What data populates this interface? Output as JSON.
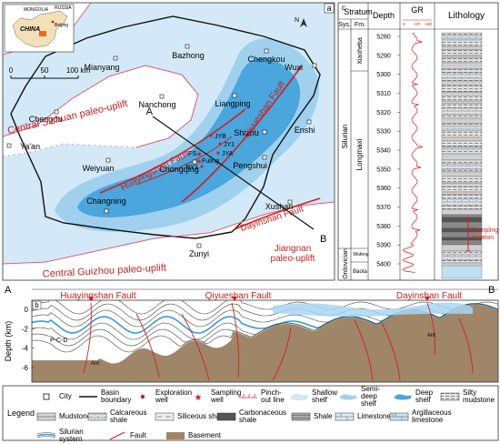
{
  "map": {
    "panel": "a",
    "north": "N",
    "inset": {
      "neighbors": [
        "MONGOLIA",
        "RUSSIA"
      ],
      "country": "CHINA",
      "capital": "Beijing"
    },
    "scale": [
      "0",
      "50",
      "100 km"
    ],
    "cities": [
      "Bazhong",
      "Mianyang",
      "Chengkou",
      "Wuxi",
      "Nanchong",
      "Liangping",
      "Chengdu",
      "Enshi",
      "Ya'an",
      "Shizhu",
      "Weiyuan",
      "Chongqing",
      "Pengshui",
      "Changning",
      "Zunyi",
      "Xushan"
    ],
    "wells": [
      "JYB",
      "JY1",
      "JYA",
      "FS",
      "Fuling",
      "NY1"
    ],
    "regions": [
      "Central Sichuan paleo-uplift",
      "Central Guizhou paleo-uplift",
      "Jiangnan paleo-uplift"
    ],
    "faults": [
      "Huayingshan Fault",
      "Qiyueshan Fault",
      "Dayinshan Fault"
    ],
    "section_ends": [
      "A",
      "B"
    ]
  },
  "column": {
    "panel": "c",
    "headers": {
      "stratum": "Stratum",
      "system": "Sys.",
      "formation": "Fm.",
      "depth": "Depth",
      "gr": "GR",
      "lithology": "Lithology"
    },
    "gr_scale": [
      "0",
      "API",
      "150"
    ],
    "depths": [
      5280,
      5290,
      5300,
      5310,
      5320,
      5330,
      5340,
      5350,
      5360,
      5370,
      5380,
      5390,
      5400
    ],
    "systems": [
      "Silurian",
      "Ordovician"
    ],
    "formations": [
      "Xiaoheba",
      "Longmaxi",
      "Wufeng",
      "Baota"
    ],
    "sampling": "Sampling location"
  },
  "section": {
    "panel": "b",
    "ends": [
      "A",
      "B"
    ],
    "faults": [
      "Huayingshan Fault",
      "Qiyueshan Fault",
      "Dayinshan Fault"
    ],
    "axis_label": "Depth (km)",
    "depth_ticks": [
      0,
      -2,
      -4,
      -6
    ],
    "units": [
      "P-C-D",
      "Ant",
      "Ant"
    ]
  },
  "legend": {
    "title": "Legend",
    "items": [
      "City",
      "Basin boundary",
      "Exploration well",
      "Sampling well",
      "Pinch-out line",
      "Shallow shelf",
      "Semi-deep shelf",
      "Deep shelf",
      "Silty mudstone",
      "Mudstone",
      "Calcareous shale",
      "Siliceous shale",
      "Carbonaceous shale",
      "Shale",
      "Limestone",
      "Argillaceous limestone",
      "Silurian system",
      "Fault",
      "Basement"
    ]
  }
}
